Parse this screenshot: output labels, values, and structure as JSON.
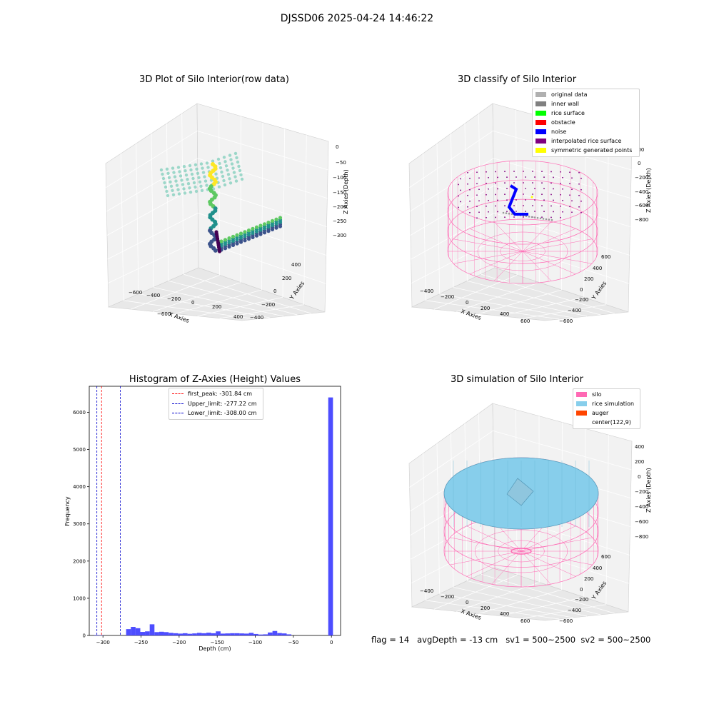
{
  "suptitle": "DJSSD06 2025-04-24 14:46:22",
  "colors": {
    "pane": "#f2f2f2",
    "pane_dark": "#e6e6e6",
    "grid": "#d9d9d9",
    "silo": "#ff69b4",
    "rice": "#87ceeb",
    "auger": "#ff4500",
    "noise": "#0000ff",
    "hist_bar": "#4d4dff",
    "inner_wall": "#808080"
  },
  "panel1": {
    "title": "3D Plot of Silo Interior(row data)",
    "xlabel": "X Axies",
    "ylabel": "Y Axies",
    "zlabel": "Z Axies (Depth)",
    "xticks": [
      "−600",
      "−400",
      "−200",
      "0",
      "200",
      "400",
      "600"
    ],
    "yticks": [
      "−400",
      "−200",
      "0",
      "200",
      "400"
    ],
    "zticks": [
      "0",
      "−50",
      "−100",
      "−150",
      "−200",
      "−250",
      "−300"
    ],
    "colormap": "viridis"
  },
  "panel2": {
    "title": "3D classify of Silo Interior",
    "xlabel": "X Axies",
    "ylabel": "Y Axies",
    "zlabel": "Z Axies (Depth)",
    "xticks": [
      "−400",
      "−200",
      "0",
      "200",
      "400",
      "600"
    ],
    "yticks": [
      "−600",
      "−400",
      "−200",
      "0",
      "200",
      "400",
      "600"
    ],
    "zticks": [
      "200",
      "0",
      "−200",
      "−400",
      "−600",
      "−800"
    ],
    "legend": [
      {
        "label": "original data",
        "color": "#b0b0b0"
      },
      {
        "label": "inner wall",
        "color": "#808080"
      },
      {
        "label": "rice surface",
        "color": "#00ff00"
      },
      {
        "label": "obstacle",
        "color": "#ff0000"
      },
      {
        "label": "noise",
        "color": "#0000ff"
      },
      {
        "label": "interpolated rice surface",
        "color": "#800080"
      },
      {
        "label": "symmetric generated points",
        "color": "#ffff00"
      }
    ]
  },
  "panel4": {
    "title": "3D simulation of Silo Interior",
    "xlabel": "X Axies",
    "ylabel": "Y Axies",
    "zlabel": "Z Axies (Depth)",
    "xticks": [
      "−400",
      "−200",
      "0",
      "200",
      "400",
      "600"
    ],
    "yticks": [
      "−600",
      "−400",
      "−200",
      "0",
      "200",
      "400",
      "600"
    ],
    "zticks": [
      "400",
      "200",
      "0",
      "−200",
      "−400",
      "−600",
      "−800"
    ],
    "legend": [
      {
        "label": "silo",
        "color": "#ff69b4"
      },
      {
        "label": "rice simulation",
        "color": "#87ceeb"
      },
      {
        "label": "auger",
        "color": "#ff4500"
      },
      {
        "label": "center(122,9)",
        "color": "#ffffff"
      }
    ]
  },
  "footer": "flag = 14   avgDepth = -13 cm   sv1 = 500~2500  sv2 = 500~2500",
  "chart_data": {
    "type": "bar",
    "title": "Histogram of Z-Axies (Height) Values",
    "xlabel": "Depth (cm)",
    "ylabel": "Frequency",
    "xlim": [
      -318,
      12
    ],
    "ylim": [
      0,
      6700
    ],
    "xticks": [
      -300,
      -250,
      -200,
      -150,
      -100,
      -50,
      0
    ],
    "xtick_labels": [
      "−300",
      "−250",
      "−200",
      "−150",
      "−100",
      "−50",
      "0"
    ],
    "yticks": [
      0,
      1000,
      2000,
      3000,
      4000,
      5000,
      6000
    ],
    "bin_width": 6.2,
    "bins": [
      {
        "x": -308.5,
        "count": 12
      },
      {
        "x": -302.3,
        "count": 8
      },
      {
        "x": -266.5,
        "count": 170
      },
      {
        "x": -260.3,
        "count": 230
      },
      {
        "x": -254.1,
        "count": 195
      },
      {
        "x": -247.9,
        "count": 95
      },
      {
        "x": -241.7,
        "count": 110
      },
      {
        "x": -235.5,
        "count": 300
      },
      {
        "x": -229.3,
        "count": 90
      },
      {
        "x": -223.1,
        "count": 100
      },
      {
        "x": -216.9,
        "count": 90
      },
      {
        "x": -210.7,
        "count": 70
      },
      {
        "x": -204.5,
        "count": 60
      },
      {
        "x": -198.3,
        "count": 50
      },
      {
        "x": -192.1,
        "count": 60
      },
      {
        "x": -185.9,
        "count": 45
      },
      {
        "x": -179.7,
        "count": 55
      },
      {
        "x": -173.5,
        "count": 70
      },
      {
        "x": -167.3,
        "count": 60
      },
      {
        "x": -161.1,
        "count": 75
      },
      {
        "x": -154.9,
        "count": 60
      },
      {
        "x": -148.7,
        "count": 110
      },
      {
        "x": -142.5,
        "count": 50
      },
      {
        "x": -136.3,
        "count": 55
      },
      {
        "x": -130.1,
        "count": 60
      },
      {
        "x": -123.9,
        "count": 60
      },
      {
        "x": -117.7,
        "count": 55
      },
      {
        "x": -111.5,
        "count": 50
      },
      {
        "x": -105.3,
        "count": 70
      },
      {
        "x": -99.1,
        "count": 40
      },
      {
        "x": -92.9,
        "count": 25
      },
      {
        "x": -86.7,
        "count": 30
      },
      {
        "x": -80.5,
        "count": 80
      },
      {
        "x": -74.3,
        "count": 120
      },
      {
        "x": -68.1,
        "count": 65
      },
      {
        "x": -61.9,
        "count": 55
      },
      {
        "x": -55.7,
        "count": 30
      },
      {
        "x": -1.1,
        "count": 6400
      }
    ],
    "vlines": [
      {
        "x": -301.84,
        "color": "#ff0000",
        "label": "first_peak: -301.84 cm"
      },
      {
        "x": -277.22,
        "color": "#0000cc",
        "label": "Upper_limit: -277.22 cm"
      },
      {
        "x": -308.0,
        "color": "#0000cc",
        "label": "Lower_limit: -308.00 cm"
      }
    ],
    "legend_position": "top-center"
  }
}
